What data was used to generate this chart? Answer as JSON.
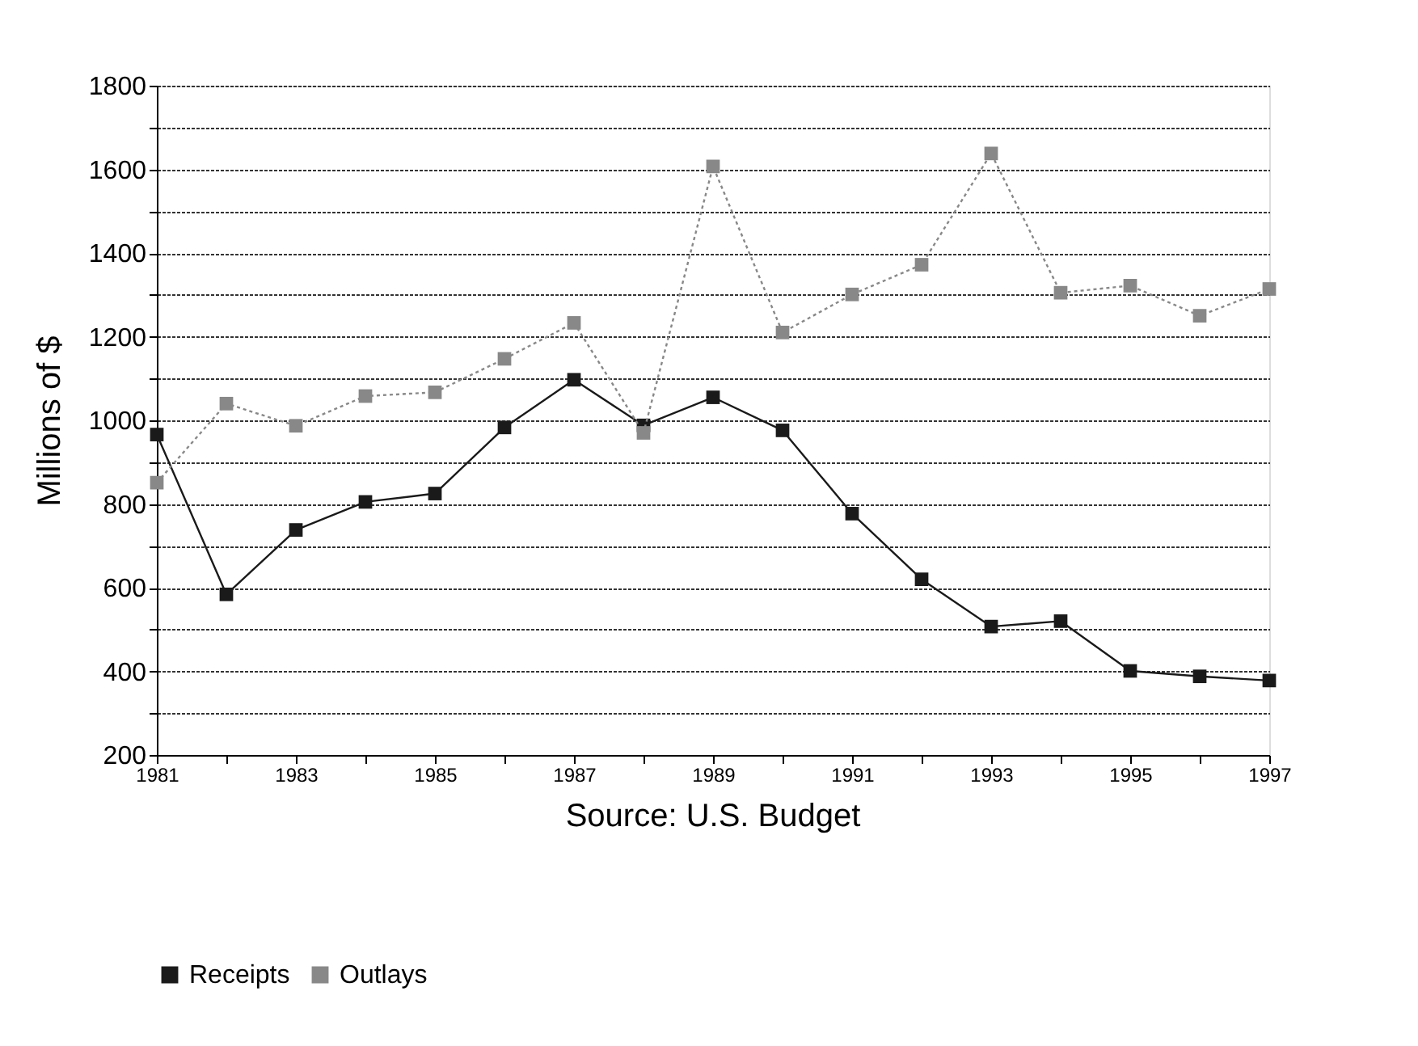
{
  "chart_data": {
    "type": "line",
    "ylabel": "Millions of $",
    "x": [
      1981,
      1982,
      1983,
      1984,
      1985,
      1986,
      1987,
      1988,
      1989,
      1990,
      1991,
      1992,
      1993,
      1994,
      1995,
      1996,
      1997
    ],
    "series": [
      {
        "name": "Receipts",
        "color": "#1a1a1a",
        "line_style": "solid",
        "values": [
          966,
          584,
          738,
          805,
          825,
          983,
          1097,
          988,
          1055,
          976,
          777,
          620,
          507,
          520,
          401,
          388,
          378
        ]
      },
      {
        "name": "Outlays",
        "color": "#888888",
        "line_style": "dotted",
        "values": [
          851,
          1040,
          987,
          1058,
          1067,
          1147,
          1233,
          970,
          1607,
          1210,
          1301,
          1372,
          1638,
          1305,
          1322,
          1250,
          1314
        ]
      }
    ],
    "xlim": [
      1981,
      1997
    ],
    "xticks": [
      1981,
      {
        "value": 1982,
        "label": null
      },
      1983,
      {
        "value": 1984,
        "label": null
      },
      1985,
      {
        "value": 1986,
        "label": null
      },
      1987,
      {
        "value": 1988,
        "label": null
      },
      1989,
      {
        "value": 1990,
        "label": null
      },
      1991,
      {
        "value": 1992,
        "label": null
      },
      1993,
      {
        "value": 1994,
        "label": null
      },
      1995,
      {
        "value": 1996,
        "label": null
      },
      1997
    ],
    "ylim": [
      200,
      1800
    ],
    "yticks": [
      200,
      {
        "value": 300,
        "label": null
      },
      400,
      {
        "value": 500,
        "label": null
      },
      600,
      {
        "value": 700,
        "label": null
      },
      800,
      {
        "value": 900,
        "label": null
      },
      1000,
      {
        "value": 1100,
        "label": null
      },
      1200,
      {
        "value": 1300,
        "label": null
      },
      1400,
      {
        "value": 1500,
        "label": null
      },
      1600,
      {
        "value": 1700,
        "label": null
      },
      1800
    ],
    "grid": "y",
    "marker": "square",
    "legend": "bottom",
    "annotations": [
      "Source: U.S. Budget"
    ]
  }
}
